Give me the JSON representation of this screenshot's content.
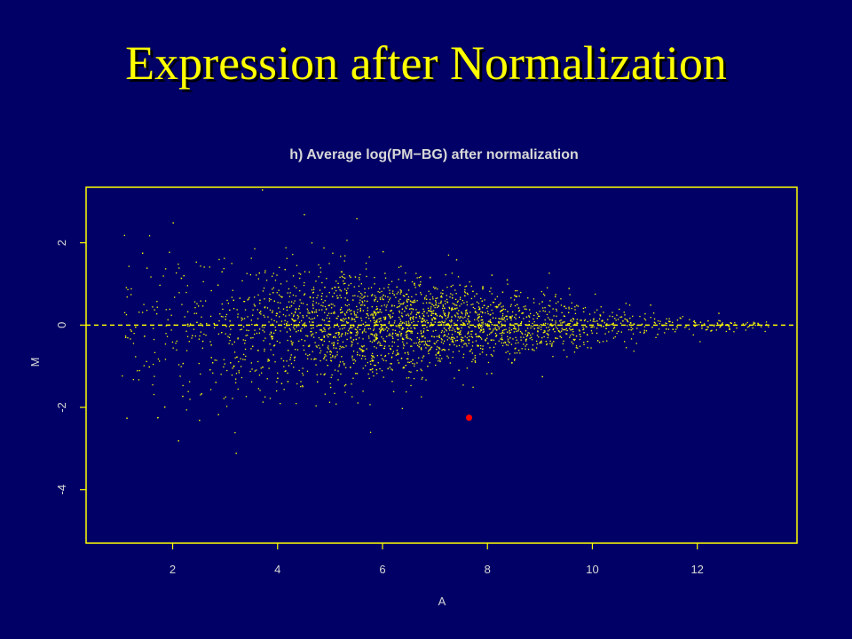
{
  "slide": {
    "title": "Expression after Normalization",
    "background_color": "#000066",
    "title_color": "#ffff00"
  },
  "chart_data": {
    "type": "scatter",
    "title": "h) Average log(PM−BG) after normalization",
    "xlabel": "A",
    "ylabel": "M",
    "xlim": [
      0.35,
      13.9
    ],
    "ylim": [
      -5.3,
      3.35
    ],
    "xticks": [
      2,
      4,
      6,
      8,
      10,
      12
    ],
    "yticks": [
      2,
      0,
      -2,
      -4
    ],
    "grid": false,
    "reference_line": {
      "y": 0,
      "style": "dashed",
      "color": "#ffff00"
    },
    "point_color": "#ffff00",
    "frame_color": "#ffff00",
    "text_color": "#d8d8d8",
    "point_count_approx": 3000,
    "points_sample": [
      {
        "x": 1.5,
        "y": 1.4
      },
      {
        "x": 2.0,
        "y": 2.5
      },
      {
        "x": 2.1,
        "y": -2.8
      },
      {
        "x": 2.5,
        "y": -2.3
      },
      {
        "x": 3.2,
        "y": -3.1
      },
      {
        "x": 3.7,
        "y": 3.3
      },
      {
        "x": 4.5,
        "y": 2.7
      },
      {
        "x": 5.0,
        "y": -1.5
      },
      {
        "x": 5.5,
        "y": 2.6
      },
      {
        "x": 6.0,
        "y": 1.8
      },
      {
        "x": 6.3,
        "y": 0.6
      },
      {
        "x": 6.8,
        "y": -0.3
      },
      {
        "x": 7.4,
        "y": 1.6
      },
      {
        "x": 8.2,
        "y": 0.5
      },
      {
        "x": 9.5,
        "y": -0.2
      },
      {
        "x": 10.5,
        "y": 0.4
      },
      {
        "x": 11.1,
        "y": 0.5
      },
      {
        "x": 12.4,
        "y": 0.3
      }
    ],
    "highlighted_point": {
      "x": 7.65,
      "y": -2.25,
      "color": "#ff0000"
    }
  }
}
